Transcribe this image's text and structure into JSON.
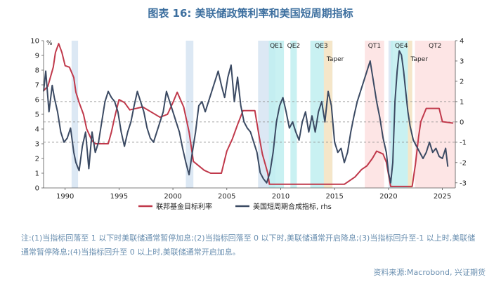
{
  "page": {
    "title": "图表 16: 美联储政策利率和美国短周期指标",
    "note": "注:(1)当指标回落至 1 以下时美联储通常暂停加息;(2)当指标回落至 0 以下时,美联储通常开启降息;(3)当指标回升至-1 以上时,美联储通常暂停降息;(4)当指标回升至 0 以上时,美联储通常开启加息。",
    "source": "资料来源:Macrobond, 兴证期货"
  },
  "chart_data": {
    "type": "line",
    "title": "图表 16: 美联储政策利率和美国短周期指标",
    "xlim": [
      1988.0,
      2026.2
    ],
    "x_ticks": [
      1990,
      1995,
      2000,
      2005,
      2010,
      2015,
      2020,
      2025
    ],
    "y_left": {
      "label": "%",
      "range": [
        0,
        10
      ],
      "ticks": [
        0,
        1,
        2,
        3,
        4,
        5,
        6,
        7,
        8,
        9,
        10
      ]
    },
    "y_right": {
      "range": [
        -3.25,
        4.0
      ],
      "ticks": [
        -3,
        -2,
        -1,
        0,
        1,
        2,
        3,
        4
      ]
    },
    "reference_lines": [
      1,
      0,
      -1
    ],
    "legend_position": "bottom",
    "colors": {
      "fed_rate": "#c0394b",
      "indicator": "#3b4a63"
    },
    "series": [
      {
        "name": "联邦基金目标利率",
        "axis": "left",
        "x": [
          1988.0,
          1988.4,
          1988.9,
          1989.1,
          1989.4,
          1989.7,
          1990.0,
          1990.4,
          1990.8,
          1991.0,
          1991.3,
          1991.7,
          1992.0,
          1992.5,
          1992.8,
          1994.0,
          1994.3,
          1994.6,
          1995.0,
          1995.5,
          1996.0,
          1997.2,
          1998.8,
          1999.5,
          2000.0,
          2000.4,
          2001.0,
          2001.5,
          2001.9,
          2002.9,
          2003.5,
          2004.5,
          2005.0,
          2005.5,
          2006.0,
          2006.5,
          2007.6,
          2008.0,
          2008.3,
          2008.8,
          2008.95,
          2015.9,
          2016.9,
          2017.5,
          2018.0,
          2018.5,
          2018.9,
          2019.5,
          2019.8,
          2020.2,
          2022.2,
          2022.5,
          2022.8,
          2023.0,
          2023.5,
          2024.7,
          2025.0,
          2026.0
        ],
        "values": [
          6.6,
          6.9,
          8.2,
          9.2,
          9.8,
          9.2,
          8.3,
          8.2,
          7.5,
          6.5,
          5.8,
          5.0,
          4.0,
          3.2,
          3.0,
          3.0,
          3.8,
          4.8,
          6.0,
          5.8,
          5.3,
          5.5,
          4.8,
          5.0,
          5.8,
          6.5,
          5.5,
          3.8,
          1.8,
          1.2,
          1.0,
          1.0,
          2.5,
          3.3,
          4.3,
          5.25,
          5.25,
          3.5,
          2.3,
          1.0,
          0.25,
          0.25,
          0.75,
          1.25,
          1.5,
          2.0,
          2.5,
          2.3,
          1.75,
          0.1,
          0.1,
          1.6,
          3.5,
          4.5,
          5.4,
          5.4,
          4.5,
          4.4
        ]
      },
      {
        "name": "美国短周期合成指标, rhs",
        "axis": "right",
        "x": [
          1988.0,
          1988.2,
          1988.5,
          1988.8,
          1989.0,
          1989.3,
          1989.6,
          1989.9,
          1990.2,
          1990.5,
          1990.8,
          1991.0,
          1991.3,
          1991.6,
          1991.9,
          1992.2,
          1992.5,
          1992.8,
          1993.1,
          1993.4,
          1993.7,
          1994.0,
          1994.3,
          1994.6,
          1994.9,
          1995.2,
          1995.5,
          1995.8,
          1996.1,
          1996.4,
          1996.7,
          1997.0,
          1997.3,
          1997.6,
          1997.9,
          1998.2,
          1998.5,
          1998.8,
          1999.1,
          1999.4,
          1999.7,
          2000.0,
          2000.3,
          2000.6,
          2000.9,
          2001.2,
          2001.5,
          2001.8,
          2002.1,
          2002.4,
          2002.7,
          2003.0,
          2003.3,
          2003.6,
          2003.9,
          2004.2,
          2004.5,
          2004.8,
          2005.1,
          2005.4,
          2005.7,
          2006.0,
          2006.3,
          2006.6,
          2006.9,
          2007.2,
          2007.5,
          2007.8,
          2008.1,
          2008.4,
          2008.7,
          2009.0,
          2009.3,
          2009.6,
          2009.9,
          2010.2,
          2010.5,
          2010.8,
          2011.1,
          2011.4,
          2011.7,
          2012.0,
          2012.3,
          2012.6,
          2012.9,
          2013.2,
          2013.5,
          2013.8,
          2014.1,
          2014.4,
          2014.7,
          2015.0,
          2015.3,
          2015.6,
          2015.9,
          2016.2,
          2016.5,
          2016.8,
          2017.1,
          2017.4,
          2017.7,
          2018.0,
          2018.3,
          2018.6,
          2018.9,
          2019.2,
          2019.5,
          2019.8,
          2020.0,
          2020.2,
          2020.4,
          2020.6,
          2020.8,
          2021.0,
          2021.2,
          2021.4,
          2021.6,
          2021.8,
          2022.0,
          2022.3,
          2022.6,
          2022.9,
          2023.2,
          2023.5,
          2023.8,
          2024.1,
          2024.4,
          2024.7,
          2025.0,
          2025.3,
          2025.5
        ],
        "values": [
          1.5,
          2.5,
          0.5,
          1.8,
          1.2,
          0.5,
          -0.5,
          -1.0,
          -0.8,
          -0.3,
          -1.5,
          -2.0,
          -2.4,
          -1.2,
          -0.5,
          -2.3,
          -0.5,
          -1.5,
          -1.0,
          0.0,
          1.0,
          1.5,
          1.2,
          1.0,
          0.5,
          -0.5,
          -1.2,
          -0.5,
          0.0,
          0.8,
          1.5,
          1.0,
          0.5,
          -0.3,
          -0.8,
          -1.0,
          -0.5,
          0.0,
          0.5,
          1.5,
          1.0,
          0.5,
          0.0,
          -0.5,
          -1.3,
          -2.0,
          -2.6,
          -1.5,
          -0.5,
          0.8,
          1.0,
          0.5,
          1.0,
          1.5,
          2.0,
          2.5,
          1.8,
          1.2,
          2.2,
          2.8,
          1.0,
          2.2,
          0.8,
          0.0,
          -0.3,
          -0.5,
          -1.0,
          -1.5,
          -2.5,
          -2.8,
          -3.0,
          -2.5,
          -1.5,
          0.0,
          0.8,
          1.2,
          0.5,
          -0.3,
          0.0,
          -0.5,
          -0.9,
          0.0,
          0.5,
          -0.5,
          0.3,
          -0.5,
          0.5,
          1.0,
          0.0,
          1.5,
          0.8,
          -1.0,
          -1.5,
          -1.3,
          -2.0,
          -1.5,
          -0.5,
          0.3,
          1.0,
          1.5,
          2.0,
          2.5,
          3.0,
          2.0,
          1.0,
          0.2,
          -0.8,
          -1.5,
          -2.5,
          -3.0,
          -2.0,
          1.0,
          2.5,
          3.5,
          3.3,
          2.5,
          1.5,
          0.5,
          -0.2,
          -0.9,
          -1.2,
          -1.5,
          -1.8,
          -1.5,
          -1.0,
          -1.5,
          -1.3,
          -1.7,
          -1.8,
          -1.3,
          -2.2
        ]
      }
    ],
    "shaded_regions": [
      {
        "label": "",
        "x": [
          1990.6,
          1991.2
        ],
        "color": "#d6e4f2"
      },
      {
        "label": "",
        "x": [
          2001.2,
          2001.9
        ],
        "color": "#d6e4f2"
      },
      {
        "label": "",
        "x": [
          2007.9,
          2009.5
        ],
        "color": "#d6e4f2"
      },
      {
        "label": "QE1",
        "x": [
          2008.9,
          2010.3
        ],
        "color": "#bfeff0"
      },
      {
        "label": "QE2",
        "x": [
          2010.9,
          2011.5
        ],
        "color": "#bfeff0"
      },
      {
        "label": "QE3",
        "x": [
          2012.75,
          2014.8
        ],
        "color": "#bfeff0"
      },
      {
        "label": "Taper",
        "x": [
          2014.0,
          2014.8
        ],
        "color": "#fde4c2"
      },
      {
        "label": "QT1",
        "x": [
          2017.8,
          2019.6
        ],
        "color": "#fde0e0"
      },
      {
        "label": "",
        "x": [
          2020.0,
          2020.4
        ],
        "color": "#d6e4f2"
      },
      {
        "label": "QE4",
        "x": [
          2020.2,
          2022.2
        ],
        "color": "#bfeff0"
      },
      {
        "label": "Taper",
        "x": [
          2021.8,
          2022.2
        ],
        "color": "#fde4c2"
      },
      {
        "label": "QT2",
        "x": [
          2022.45,
          2026.2
        ],
        "color": "#fde0e0"
      }
    ]
  }
}
